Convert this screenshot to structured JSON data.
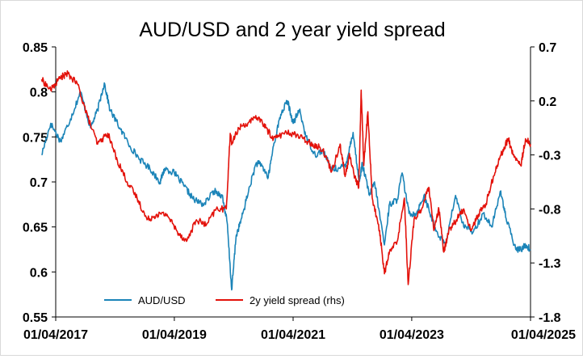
{
  "chart_data": {
    "type": "line",
    "title": "AUD/USD and 2 year yield spread",
    "xlabel": "",
    "ylabel": "",
    "y2label": "",
    "x_range": [
      "01/04/2017",
      "01/04/2025"
    ],
    "x_ticks": [
      "01/04/2017",
      "01/04/2019",
      "01/04/2021",
      "01/04/2023",
      "01/04/2025"
    ],
    "y_left": {
      "lim": [
        0.55,
        0.85
      ],
      "ticks": [
        "0.85",
        "0.8",
        "0.75",
        "0.7",
        "0.65",
        "0.6",
        "0.55"
      ]
    },
    "y_right": {
      "lim": [
        -1.8,
        0.7
      ],
      "ticks": [
        "0.7",
        "0.2",
        "-0.3",
        "-0.8",
        "-1.3",
        "-1.8"
      ]
    },
    "grid": false,
    "legend_position": "bottom-inside",
    "series": [
      {
        "name": "AUD/USD",
        "axis": "left",
        "color": "#1b84b8",
        "points": [
          [
            "2017-01-04",
            0.73
          ],
          [
            "2017-03-01",
            0.765
          ],
          [
            "2017-05-01",
            0.745
          ],
          [
            "2017-07-01",
            0.77
          ],
          [
            "2017-09-01",
            0.8
          ],
          [
            "2017-11-01",
            0.76
          ],
          [
            "2017-12-15",
            0.78
          ],
          [
            "2018-01-25",
            0.81
          ],
          [
            "2018-03-01",
            0.78
          ],
          [
            "2018-05-01",
            0.76
          ],
          [
            "2018-07-01",
            0.74
          ],
          [
            "2018-09-01",
            0.725
          ],
          [
            "2018-11-01",
            0.715
          ],
          [
            "2019-01-03",
            0.7
          ],
          [
            "2019-02-01",
            0.715
          ],
          [
            "2019-04-01",
            0.71
          ],
          [
            "2019-06-01",
            0.695
          ],
          [
            "2019-08-01",
            0.68
          ],
          [
            "2019-10-01",
            0.675
          ],
          [
            "2019-12-01",
            0.69
          ],
          [
            "2020-01-20",
            0.685
          ],
          [
            "2020-02-20",
            0.655
          ],
          [
            "2020-03-19",
            0.58
          ],
          [
            "2020-04-15",
            0.64
          ],
          [
            "2020-05-20",
            0.66
          ],
          [
            "2020-07-01",
            0.69
          ],
          [
            "2020-08-15",
            0.72
          ],
          [
            "2020-09-15",
            0.72
          ],
          [
            "2020-10-30",
            0.705
          ],
          [
            "2020-12-01",
            0.74
          ],
          [
            "2021-01-15",
            0.775
          ],
          [
            "2021-02-25",
            0.79
          ],
          [
            "2021-04-01",
            0.765
          ],
          [
            "2021-05-10",
            0.78
          ],
          [
            "2021-06-20",
            0.75
          ],
          [
            "2021-08-15",
            0.73
          ],
          [
            "2021-10-01",
            0.735
          ],
          [
            "2021-11-20",
            0.715
          ],
          [
            "2022-01-15",
            0.715
          ],
          [
            "2022-02-20",
            0.72
          ],
          [
            "2022-04-05",
            0.755
          ],
          [
            "2022-05-12",
            0.7
          ],
          [
            "2022-06-01",
            0.72
          ],
          [
            "2022-07-15",
            0.685
          ],
          [
            "2022-08-15",
            0.7
          ],
          [
            "2022-10-15",
            0.63
          ],
          [
            "2022-11-15",
            0.675
          ],
          [
            "2023-01-01",
            0.68
          ],
          [
            "2023-02-01",
            0.71
          ],
          [
            "2023-03-15",
            0.665
          ],
          [
            "2023-05-01",
            0.665
          ],
          [
            "2023-06-15",
            0.685
          ],
          [
            "2023-08-01",
            0.66
          ],
          [
            "2023-09-01",
            0.645
          ],
          [
            "2023-10-25",
            0.63
          ],
          [
            "2023-12-27",
            0.685
          ],
          [
            "2024-02-15",
            0.65
          ],
          [
            "2024-04-15",
            0.645
          ],
          [
            "2024-06-15",
            0.665
          ],
          [
            "2024-08-05",
            0.65
          ],
          [
            "2024-09-30",
            0.69
          ],
          [
            "2024-11-01",
            0.66
          ],
          [
            "2024-12-31",
            0.625
          ],
          [
            "2025-02-01",
            0.625
          ],
          [
            "2025-03-01",
            0.63
          ],
          [
            "2025-04-01",
            0.625
          ]
        ]
      },
      {
        "name": "2y yield spread (rhs)",
        "axis": "right",
        "color": "#e3120b",
        "points": [
          [
            "2017-01-04",
            0.4
          ],
          [
            "2017-03-01",
            0.3
          ],
          [
            "2017-05-01",
            0.42
          ],
          [
            "2017-06-15",
            0.45
          ],
          [
            "2017-08-15",
            0.35
          ],
          [
            "2017-10-15",
            0.05
          ],
          [
            "2017-12-15",
            -0.2
          ],
          [
            "2018-02-15",
            -0.1
          ],
          [
            "2018-04-15",
            -0.35
          ],
          [
            "2018-06-15",
            -0.55
          ],
          [
            "2018-08-15",
            -0.7
          ],
          [
            "2018-10-15",
            -0.9
          ],
          [
            "2018-12-15",
            -0.85
          ],
          [
            "2019-02-15",
            -0.85
          ],
          [
            "2019-04-15",
            -1.0
          ],
          [
            "2019-06-15",
            -1.1
          ],
          [
            "2019-08-15",
            -0.9
          ],
          [
            "2019-10-15",
            -0.95
          ],
          [
            "2019-12-15",
            -0.8
          ],
          [
            "2020-02-15",
            -0.8
          ],
          [
            "2020-03-10",
            -0.1
          ],
          [
            "2020-03-20",
            -0.2
          ],
          [
            "2020-05-01",
            -0.05
          ],
          [
            "2020-07-01",
            0.0
          ],
          [
            "2020-09-01",
            0.05
          ],
          [
            "2020-10-15",
            -0.05
          ],
          [
            "2020-12-01",
            -0.15
          ],
          [
            "2021-02-01",
            -0.1
          ],
          [
            "2021-04-01",
            -0.1
          ],
          [
            "2021-06-01",
            -0.15
          ],
          [
            "2021-08-01",
            -0.2
          ],
          [
            "2021-10-01",
            -0.25
          ],
          [
            "2021-11-25",
            -0.45
          ],
          [
            "2022-01-15",
            -0.2
          ],
          [
            "2022-02-15",
            -0.5
          ],
          [
            "2022-03-15",
            -0.3
          ],
          [
            "2022-04-15",
            -0.5
          ],
          [
            "2022-05-10",
            -0.6
          ],
          [
            "2022-05-25",
            0.3
          ],
          [
            "2022-06-10",
            -0.4
          ],
          [
            "2022-07-05",
            0.1
          ],
          [
            "2022-08-01",
            -0.7
          ],
          [
            "2022-09-15",
            -1.0
          ],
          [
            "2022-10-15",
            -1.4
          ],
          [
            "2022-11-15",
            -1.2
          ],
          [
            "2023-01-01",
            -1.1
          ],
          [
            "2023-02-15",
            -0.7
          ],
          [
            "2023-03-10",
            -1.5
          ],
          [
            "2023-04-15",
            -0.9
          ],
          [
            "2023-06-01",
            -0.8
          ],
          [
            "2023-07-15",
            -0.6
          ],
          [
            "2023-08-15",
            -1.0
          ],
          [
            "2023-09-15",
            -0.8
          ],
          [
            "2023-10-15",
            -1.2
          ],
          [
            "2023-11-15",
            -1.0
          ],
          [
            "2024-01-01",
            -0.9
          ],
          [
            "2024-02-15",
            -0.8
          ],
          [
            "2024-04-01",
            -1.0
          ],
          [
            "2024-05-15",
            -0.85
          ],
          [
            "2024-07-01",
            -0.75
          ],
          [
            "2024-08-15",
            -0.5
          ],
          [
            "2024-10-01",
            -0.3
          ],
          [
            "2024-11-15",
            -0.15
          ],
          [
            "2024-12-15",
            -0.3
          ],
          [
            "2025-02-01",
            -0.4
          ],
          [
            "2025-03-01",
            -0.15
          ],
          [
            "2025-04-01",
            -0.2
          ]
        ]
      }
    ]
  }
}
